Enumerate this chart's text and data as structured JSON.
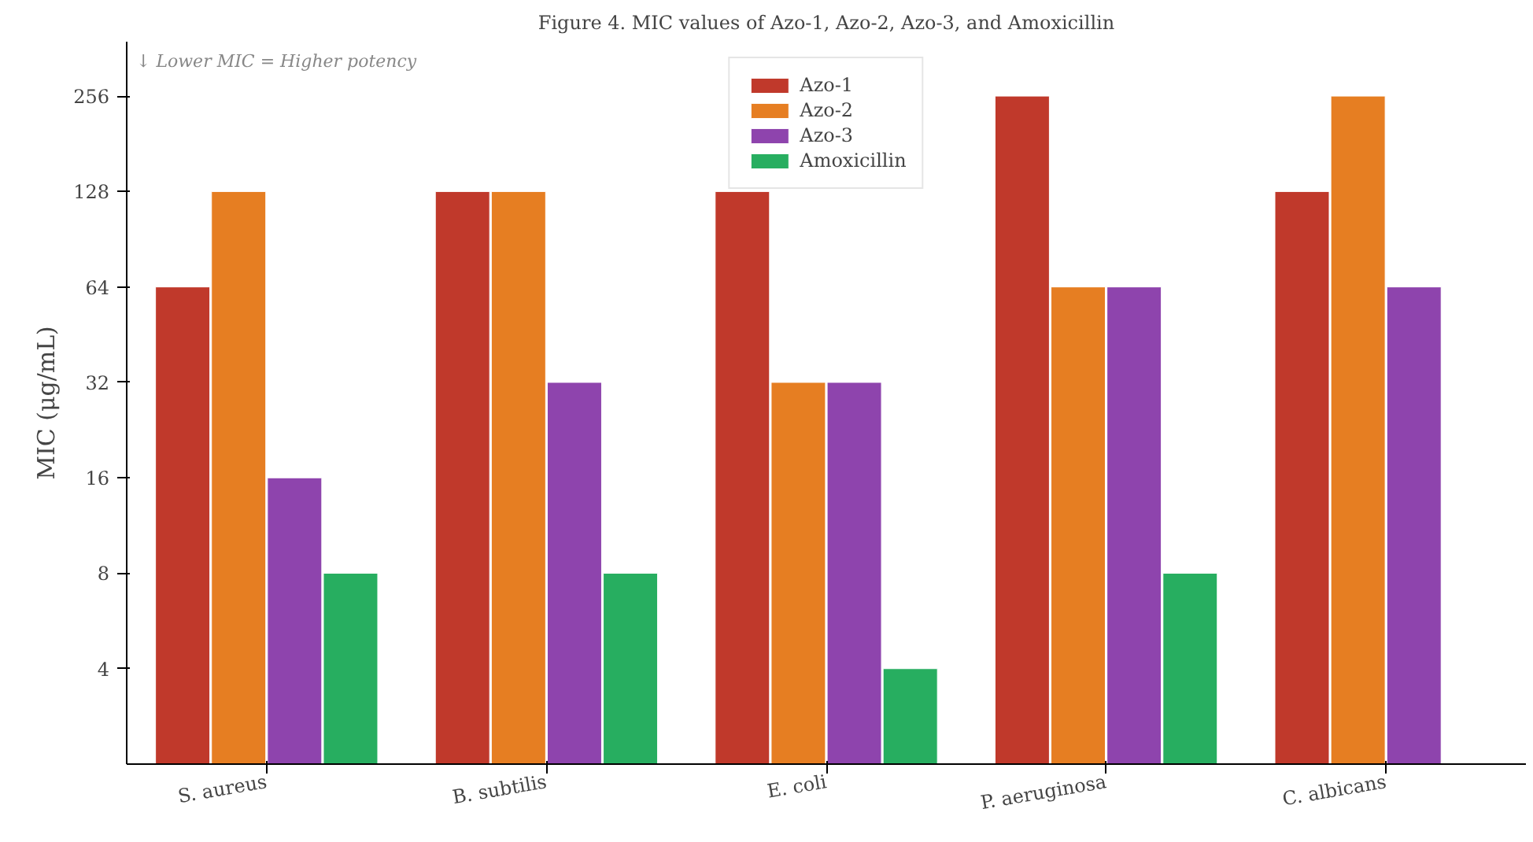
{
  "chart_data": {
    "type": "bar",
    "title": "Figure 4. MIC values of Azo-1, Azo-2, Azo-3, and Amoxicillin",
    "ylabel": "MIC (μg/mL)",
    "categories": [
      "S. aureus",
      "B. subtilis",
      "E. coli",
      "P. aeruginosa",
      "C. albicans"
    ],
    "series": [
      {
        "name": "Azo-1",
        "color": "#c0392b",
        "values": [
          64,
          128,
          128,
          256,
          128
        ]
      },
      {
        "name": "Azo-2",
        "color": "#e67e22",
        "values": [
          128,
          128,
          32,
          64,
          256
        ]
      },
      {
        "name": "Azo-3",
        "color": "#8e44ad",
        "values": [
          16,
          32,
          32,
          64,
          64
        ]
      },
      {
        "name": "Amoxicillin",
        "color": "#27ae60",
        "values": [
          8,
          8,
          4,
          8,
          null
        ]
      }
    ],
    "log": "y",
    "ylim": [
      2,
      380
    ],
    "yticks": [
      4,
      8,
      16,
      32,
      64,
      128,
      256
    ],
    "grid": false,
    "legend": "top",
    "annotations": [
      "↓ Lower MIC = Higher potency"
    ]
  }
}
